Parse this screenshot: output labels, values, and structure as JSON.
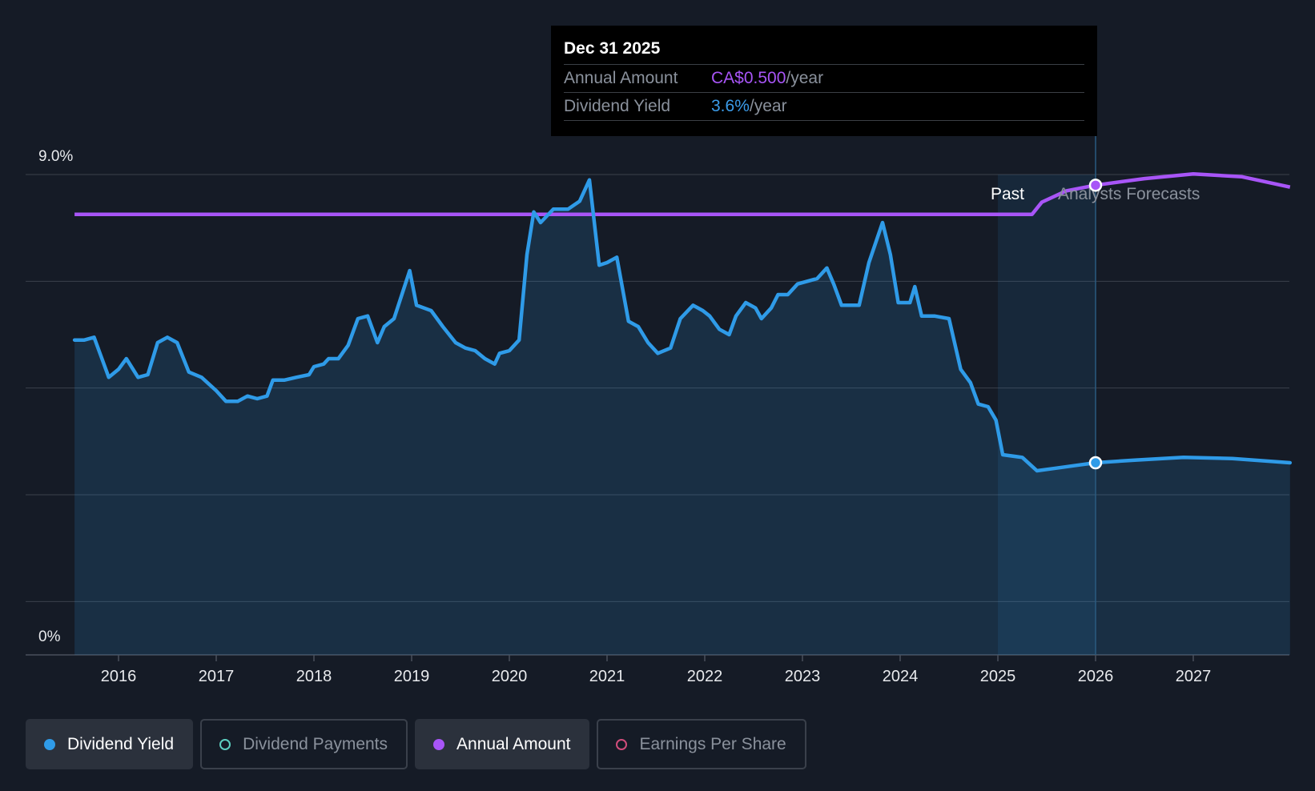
{
  "tooltip": {
    "date": "Dec 31 2025",
    "rows": [
      {
        "label": "Annual Amount",
        "value": "CA$0.500",
        "unit": "/year",
        "color": "#a855f7"
      },
      {
        "label": "Dividend Yield",
        "value": "3.6%",
        "unit": "/year",
        "color": "#3b9be8"
      }
    ]
  },
  "regions": {
    "past": "Past",
    "forecast": "Analysts Forecasts"
  },
  "legend": [
    {
      "label": "Dividend Yield",
      "color": "#2f9be8",
      "active": true,
      "icon": "filled-dot-icon"
    },
    {
      "label": "Dividend Payments",
      "color": "#5dcfc1",
      "active": false,
      "icon": "hollow-dot-icon"
    },
    {
      "label": "Annual Amount",
      "color": "#a855f7",
      "active": true,
      "icon": "filled-dot-icon"
    },
    {
      "label": "Earnings Per Share",
      "color": "#d14d7b",
      "active": false,
      "icon": "hollow-dot-icon"
    }
  ],
  "colors": {
    "background": "#151b26",
    "yield": "#2f9be8",
    "amount": "#a855f7",
    "grid": "#3a404b"
  },
  "chart_data": {
    "type": "line",
    "x_ticks": [
      "2016",
      "2017",
      "2018",
      "2019",
      "2020",
      "2021",
      "2022",
      "2023",
      "2024",
      "2025",
      "2026",
      "2027"
    ],
    "y_ticks": [
      "0%",
      "9.0%"
    ],
    "ylim": [
      0,
      9.0
    ],
    "xlim": [
      2015.0,
      2028.0
    ],
    "past_until": 2025.5,
    "highlight_date": 2026.0,
    "series": [
      {
        "name": "Dividend Yield",
        "unit": "%",
        "points": [
          [
            2015.55,
            5.9
          ],
          [
            2015.65,
            5.9
          ],
          [
            2015.75,
            5.95
          ],
          [
            2015.9,
            5.2
          ],
          [
            2016.0,
            5.35
          ],
          [
            2016.08,
            5.55
          ],
          [
            2016.2,
            5.2
          ],
          [
            2016.3,
            5.25
          ],
          [
            2016.4,
            5.85
          ],
          [
            2016.5,
            5.95
          ],
          [
            2016.6,
            5.85
          ],
          [
            2016.72,
            5.3
          ],
          [
            2016.85,
            5.2
          ],
          [
            2017.0,
            4.95
          ],
          [
            2017.1,
            4.75
          ],
          [
            2017.22,
            4.75
          ],
          [
            2017.32,
            4.85
          ],
          [
            2017.42,
            4.8
          ],
          [
            2017.52,
            4.85
          ],
          [
            2017.58,
            5.15
          ],
          [
            2017.7,
            5.15
          ],
          [
            2017.82,
            5.2
          ],
          [
            2017.95,
            5.25
          ],
          [
            2018.0,
            5.4
          ],
          [
            2018.1,
            5.45
          ],
          [
            2018.15,
            5.55
          ],
          [
            2018.25,
            5.55
          ],
          [
            2018.35,
            5.8
          ],
          [
            2018.45,
            6.3
          ],
          [
            2018.55,
            6.35
          ],
          [
            2018.65,
            5.85
          ],
          [
            2018.72,
            6.15
          ],
          [
            2018.82,
            6.3
          ],
          [
            2018.9,
            6.75
          ],
          [
            2018.98,
            7.2
          ],
          [
            2019.05,
            6.55
          ],
          [
            2019.2,
            6.45
          ],
          [
            2019.32,
            6.15
          ],
          [
            2019.45,
            5.85
          ],
          [
            2019.55,
            5.75
          ],
          [
            2019.65,
            5.7
          ],
          [
            2019.75,
            5.55
          ],
          [
            2019.85,
            5.45
          ],
          [
            2019.9,
            5.65
          ],
          [
            2020.0,
            5.7
          ],
          [
            2020.1,
            5.9
          ],
          [
            2020.18,
            7.5
          ],
          [
            2020.25,
            8.3
          ],
          [
            2020.32,
            8.1
          ],
          [
            2020.45,
            8.35
          ],
          [
            2020.6,
            8.35
          ],
          [
            2020.72,
            8.5
          ],
          [
            2020.82,
            8.9
          ],
          [
            2020.92,
            7.3
          ],
          [
            2021.0,
            7.35
          ],
          [
            2021.1,
            7.45
          ],
          [
            2021.22,
            6.25
          ],
          [
            2021.32,
            6.15
          ],
          [
            2021.42,
            5.85
          ],
          [
            2021.52,
            5.65
          ],
          [
            2021.65,
            5.75
          ],
          [
            2021.75,
            6.3
          ],
          [
            2021.88,
            6.55
          ],
          [
            2021.98,
            6.45
          ],
          [
            2022.05,
            6.35
          ],
          [
            2022.15,
            6.1
          ],
          [
            2022.25,
            6.0
          ],
          [
            2022.32,
            6.35
          ],
          [
            2022.42,
            6.6
          ],
          [
            2022.52,
            6.5
          ],
          [
            2022.58,
            6.3
          ],
          [
            2022.68,
            6.5
          ],
          [
            2022.75,
            6.75
          ],
          [
            2022.85,
            6.75
          ],
          [
            2022.95,
            6.95
          ],
          [
            2023.05,
            7.0
          ],
          [
            2023.15,
            7.05
          ],
          [
            2023.25,
            7.25
          ],
          [
            2023.32,
            6.95
          ],
          [
            2023.4,
            6.55
          ],
          [
            2023.58,
            6.55
          ],
          [
            2023.68,
            7.35
          ],
          [
            2023.82,
            8.1
          ],
          [
            2023.9,
            7.5
          ],
          [
            2023.98,
            6.6
          ],
          [
            2024.1,
            6.6
          ],
          [
            2024.15,
            6.9
          ],
          [
            2024.22,
            6.35
          ],
          [
            2024.35,
            6.35
          ],
          [
            2024.5,
            6.3
          ],
          [
            2024.62,
            5.35
          ],
          [
            2024.72,
            5.1
          ],
          [
            2024.8,
            4.7
          ],
          [
            2024.9,
            4.65
          ],
          [
            2024.98,
            4.4
          ],
          [
            2025.05,
            3.75
          ],
          [
            2025.25,
            3.7
          ],
          [
            2025.4,
            3.45
          ],
          [
            2025.6,
            3.5
          ],
          [
            2025.8,
            3.55
          ],
          [
            2026.0,
            3.6
          ],
          [
            2026.4,
            3.65
          ],
          [
            2026.9,
            3.7
          ],
          [
            2027.4,
            3.68
          ],
          [
            2027.99,
            3.6
          ]
        ]
      },
      {
        "name": "Annual Amount",
        "unit": "CA$",
        "points": [
          [
            2015.55,
            0.469
          ],
          [
            2025.35,
            0.469
          ],
          [
            2025.45,
            0.482
          ],
          [
            2025.7,
            0.494
          ],
          [
            2026.0,
            0.5
          ],
          [
            2026.5,
            0.507
          ],
          [
            2027.0,
            0.512
          ],
          [
            2027.5,
            0.509
          ],
          [
            2027.99,
            0.498
          ]
        ]
      }
    ]
  }
}
